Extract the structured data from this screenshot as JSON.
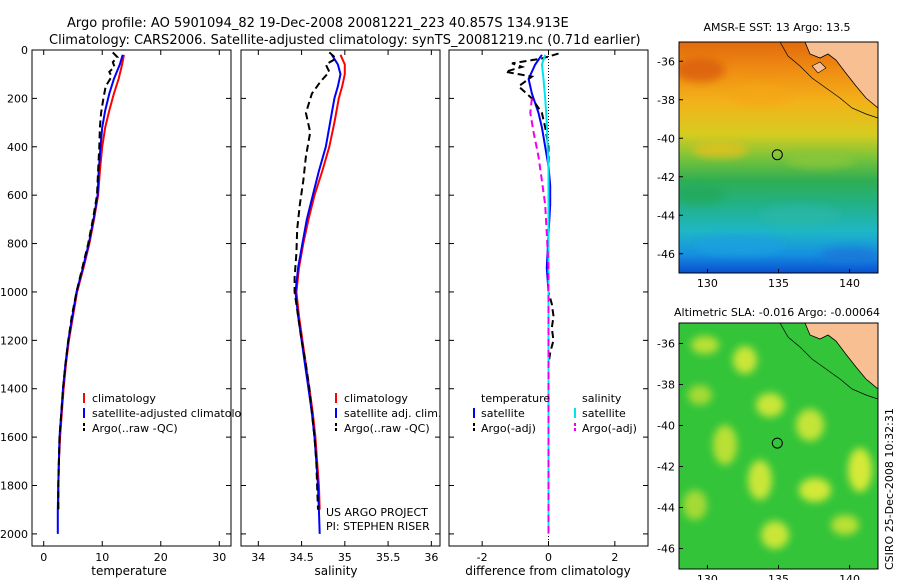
{
  "title": {
    "line1": "Argo profile: AO 5901094_82 19-Dec-2008 20081221_223 40.857S 134.913E",
    "line2": "Climatology: CARS2006. Satellite-adjusted climatology: synTS_20081219.nc (0.71d earlier)"
  },
  "credit": {
    "line1": "US ARGO PROJECT",
    "line2": "PI: STEPHEN RISER"
  },
  "stamp": "CSIRO 25-Dec-2008 10:32:31",
  "colors": {
    "climatology": "#ff0000",
    "satellite": "#0000ff",
    "argo": "#000000",
    "sal_satellite": "#00e5ee",
    "sal_argo": "#ee00ee",
    "land": "#f8bf92"
  },
  "chart_data": [
    {
      "type": "line",
      "id": "temperature",
      "xlabel": "temperature",
      "ylabel": "",
      "xlim": [
        -2,
        32
      ],
      "ylim": [
        2050,
        0
      ],
      "xticks": [
        "0",
        "10",
        "20",
        "30"
      ],
      "xtick_values": [
        0,
        10,
        20,
        30
      ],
      "yticks": [
        "0",
        "200",
        "400",
        "600",
        "800",
        "1000",
        "1200",
        "1400",
        "1600",
        "1800",
        "2000"
      ],
      "ytick_values": [
        0,
        200,
        400,
        600,
        800,
        1000,
        1200,
        1400,
        1600,
        1800,
        2000
      ],
      "legend": [
        "climatology",
        "satellite-adjusted climatology",
        "Argo(..raw -QC)"
      ],
      "series": [
        {
          "name": "climatology",
          "color": "#ff0000",
          "dash": "",
          "points": [
            [
              13.7,
              20
            ],
            [
              13.4,
              60
            ],
            [
              12.8,
              120
            ],
            [
              12,
              180
            ],
            [
              11.2,
              250
            ],
            [
              10.5,
              320
            ],
            [
              10,
              400
            ],
            [
              9.6,
              500
            ],
            [
              9.3,
              600
            ],
            [
              8.6,
              700
            ],
            [
              7.8,
              800
            ],
            [
              6.8,
              900
            ],
            [
              5.7,
              1000
            ],
            [
              5,
              1100
            ],
            [
              4.3,
              1200
            ],
            [
              3.8,
              1300
            ],
            [
              3.4,
              1400
            ],
            [
              3.1,
              1500
            ],
            [
              2.8,
              1600
            ],
            [
              2.6,
              1700
            ],
            [
              2.5,
              1800
            ],
            [
              2.5,
              1900
            ]
          ]
        },
        {
          "name": "satellite-adjusted climatology",
          "color": "#0000ff",
          "dash": "",
          "points": [
            [
              13.5,
              20
            ],
            [
              13,
              60
            ],
            [
              12,
              120
            ],
            [
              11.2,
              180
            ],
            [
              10.5,
              250
            ],
            [
              10,
              320
            ],
            [
              9.7,
              400
            ],
            [
              9.4,
              500
            ],
            [
              9.2,
              600
            ],
            [
              8.5,
              700
            ],
            [
              7.7,
              800
            ],
            [
              6.7,
              900
            ],
            [
              5.6,
              1000
            ],
            [
              4.9,
              1100
            ],
            [
              4.2,
              1200
            ],
            [
              3.7,
              1300
            ],
            [
              3.3,
              1400
            ],
            [
              3,
              1500
            ],
            [
              2.7,
              1600
            ],
            [
              2.6,
              1700
            ],
            [
              2.5,
              1800
            ],
            [
              2.4,
              1900
            ],
            [
              2.4,
              2000
            ]
          ]
        },
        {
          "name": "Argo(..raw -QC)",
          "color": "#000000",
          "dash": "7,4",
          "points": [
            [
              11.8,
              10
            ],
            [
              12.6,
              30
            ],
            [
              11.8,
              50
            ],
            [
              12.1,
              70
            ],
            [
              11.2,
              90
            ],
            [
              11.6,
              110
            ],
            [
              10.6,
              150
            ],
            [
              10.2,
              200
            ],
            [
              9.8,
              260
            ],
            [
              9.6,
              320
            ],
            [
              9.5,
              400
            ],
            [
              9.3,
              500
            ],
            [
              9.1,
              600
            ],
            [
              8.4,
              700
            ],
            [
              7.6,
              800
            ],
            [
              6.6,
              900
            ],
            [
              5.6,
              1000
            ],
            [
              4.8,
              1100
            ],
            [
              4.2,
              1200
            ],
            [
              3.7,
              1300
            ],
            [
              3.3,
              1400
            ],
            [
              3,
              1500
            ],
            [
              2.7,
              1600
            ],
            [
              2.6,
              1700
            ],
            [
              2.5,
              1800
            ],
            [
              2.5,
              1900
            ]
          ]
        }
      ]
    },
    {
      "type": "line",
      "id": "salinity",
      "xlabel": "salinity",
      "ylabel": "",
      "xlim": [
        33.8,
        36.1
      ],
      "ylim": [
        2050,
        0
      ],
      "xticks": [
        "34",
        "34.5",
        "35",
        "35.5",
        "36"
      ],
      "xtick_values": [
        34,
        34.5,
        35,
        35.5,
        36
      ],
      "legend": [
        "climatology",
        "satellite adj. clim.",
        "Argo(..raw -QC)"
      ],
      "series": [
        {
          "name": "climatology",
          "color": "#ff0000",
          "dash": "",
          "points": [
            [
              34.95,
              20
            ],
            [
              35,
              60
            ],
            [
              35,
              100
            ],
            [
              34.97,
              150
            ],
            [
              34.93,
              200
            ],
            [
              34.88,
              300
            ],
            [
              34.82,
              400
            ],
            [
              34.74,
              500
            ],
            [
              34.65,
              600
            ],
            [
              34.58,
              700
            ],
            [
              34.52,
              800
            ],
            [
              34.47,
              900
            ],
            [
              34.44,
              1000
            ],
            [
              34.47,
              1100
            ],
            [
              34.51,
              1200
            ],
            [
              34.55,
              1300
            ],
            [
              34.59,
              1400
            ],
            [
              34.63,
              1500
            ],
            [
              34.66,
              1600
            ],
            [
              34.68,
              1700
            ],
            [
              34.7,
              1800
            ],
            [
              34.71,
              1900
            ]
          ]
        },
        {
          "name": "satellite adj. clim.",
          "color": "#0000ff",
          "dash": "",
          "points": [
            [
              34.85,
              20
            ],
            [
              34.92,
              60
            ],
            [
              34.95,
              100
            ],
            [
              34.92,
              150
            ],
            [
              34.88,
              200
            ],
            [
              34.83,
              300
            ],
            [
              34.78,
              400
            ],
            [
              34.7,
              500
            ],
            [
              34.63,
              600
            ],
            [
              34.56,
              700
            ],
            [
              34.51,
              800
            ],
            [
              34.46,
              900
            ],
            [
              34.43,
              1000
            ],
            [
              34.46,
              1100
            ],
            [
              34.5,
              1200
            ],
            [
              34.54,
              1300
            ],
            [
              34.58,
              1400
            ],
            [
              34.62,
              1500
            ],
            [
              34.65,
              1600
            ],
            [
              34.67,
              1700
            ],
            [
              34.69,
              1800
            ],
            [
              34.7,
              1900
            ],
            [
              34.71,
              2000
            ]
          ]
        },
        {
          "name": "Argo(..raw -QC)",
          "color": "#000000",
          "dash": "7,4",
          "points": [
            [
              34.82,
              10
            ],
            [
              34.9,
              35
            ],
            [
              34.78,
              60
            ],
            [
              34.82,
              90
            ],
            [
              34.72,
              130
            ],
            [
              34.62,
              180
            ],
            [
              34.55,
              260
            ],
            [
              34.6,
              340
            ],
            [
              34.55,
              440
            ],
            [
              34.52,
              540
            ],
            [
              34.48,
              640
            ],
            [
              34.45,
              740
            ],
            [
              34.44,
              840
            ],
            [
              34.42,
              940
            ],
            [
              34.42,
              1000
            ],
            [
              34.46,
              1100
            ],
            [
              34.5,
              1200
            ],
            [
              34.55,
              1300
            ],
            [
              34.59,
              1400
            ],
            [
              34.62,
              1500
            ],
            [
              34.65,
              1600
            ],
            [
              34.67,
              1700
            ],
            [
              34.68,
              1800
            ],
            [
              34.69,
              1900
            ]
          ]
        }
      ]
    },
    {
      "type": "line",
      "id": "difference",
      "xlabel": "difference from climatology",
      "ylabel": "",
      "xlim": [
        -3,
        3
      ],
      "ylim": [
        2050,
        0
      ],
      "xticks": [
        "-2",
        "0",
        "2"
      ],
      "xtick_values": [
        -2,
        0,
        2
      ],
      "legend_headers": [
        "temperature",
        "salinity"
      ],
      "legend": [
        "satellite",
        "Argo(-adj)",
        "satellite",
        "Argo(-adj)"
      ],
      "series": [
        {
          "name": "temperature satellite",
          "color": "#0000ff",
          "dash": "",
          "points": [
            [
              -0.2,
              20
            ],
            [
              -0.4,
              60
            ],
            [
              -0.6,
              120
            ],
            [
              -0.5,
              180
            ],
            [
              -0.3,
              260
            ],
            [
              -0.2,
              320
            ],
            [
              -0.1,
              400
            ],
            [
              0,
              480
            ],
            [
              0.05,
              560
            ],
            [
              0.05,
              640
            ],
            [
              0,
              760
            ],
            [
              -0.05,
              900
            ],
            [
              0,
              1000
            ],
            [
              0,
              1200
            ],
            [
              0,
              1400
            ],
            [
              0,
              1600
            ]
          ]
        },
        {
          "name": "temperature Argo(-adj)",
          "color": "#000000",
          "dash": "7,4",
          "points": [
            [
              0.3,
              15
            ],
            [
              -0.2,
              35
            ],
            [
              -1.1,
              55
            ],
            [
              -0.8,
              70
            ],
            [
              -1.3,
              90
            ],
            [
              -0.5,
              110
            ],
            [
              -0.9,
              150
            ],
            [
              -0.5,
              200
            ],
            [
              -0.2,
              260
            ],
            [
              -0.1,
              320
            ],
            [
              0,
              400
            ],
            [
              0,
              500
            ],
            [
              0,
              700
            ],
            [
              0,
              1000
            ],
            [
              0.1,
              1050
            ],
            [
              0.15,
              1100
            ],
            [
              0.1,
              1150
            ],
            [
              0.15,
              1200
            ],
            [
              0.05,
              1250
            ],
            [
              0,
              1300
            ],
            [
              0,
              1400
            ]
          ]
        },
        {
          "name": "salinity satellite",
          "color": "#00e5ee",
          "dash": "",
          "points": [
            [
              -0.1,
              20
            ],
            [
              -0.2,
              60
            ],
            [
              -0.15,
              120
            ],
            [
              -0.1,
              200
            ],
            [
              -0.05,
              300
            ],
            [
              0,
              500
            ],
            [
              0,
              1000
            ],
            [
              0,
              1500
            ],
            [
              0,
              2000
            ]
          ]
        },
        {
          "name": "salinity Argo(-adj)",
          "color": "#ee00ee",
          "dash": "7,4",
          "points": [
            [
              -0.5,
              200
            ],
            [
              -0.55,
              260
            ],
            [
              -0.45,
              340
            ],
            [
              -0.3,
              440
            ],
            [
              -0.2,
              540
            ],
            [
              -0.1,
              640
            ],
            [
              -0.05,
              760
            ],
            [
              0,
              900
            ],
            [
              0,
              1000
            ],
            [
              0,
              1500
            ],
            [
              0,
              2000
            ]
          ]
        }
      ]
    },
    {
      "type": "heatmap",
      "id": "sst_map",
      "title": "AMSR-E SST: 13 Argo: 13.5",
      "xlim": [
        128,
        142
      ],
      "ylim": [
        -47,
        -35
      ],
      "xticks": [
        "130",
        "135",
        "140"
      ],
      "xtick_values": [
        130,
        135,
        140
      ],
      "yticks": [
        "-36",
        "-38",
        "-40",
        "-42",
        "-44",
        "-46"
      ],
      "ytick_values": [
        -36,
        -38,
        -40,
        -42,
        -44,
        -46
      ],
      "float_position": [
        134.913,
        -40.857
      ]
    },
    {
      "type": "heatmap",
      "id": "sla_map",
      "title": "Altimetric SLA: -0.016 Argo: -0.00064",
      "xlim": [
        128,
        142
      ],
      "ylim": [
        -47,
        -35
      ],
      "xticks": [
        "130",
        "135",
        "140"
      ],
      "xtick_values": [
        130,
        135,
        140
      ],
      "yticks": [
        "-36",
        "-38",
        "-40",
        "-42",
        "-44",
        "-46"
      ],
      "ytick_values": [
        -36,
        -38,
        -40,
        -42,
        -44,
        -46
      ],
      "float_position": [
        134.913,
        -40.857
      ]
    }
  ]
}
